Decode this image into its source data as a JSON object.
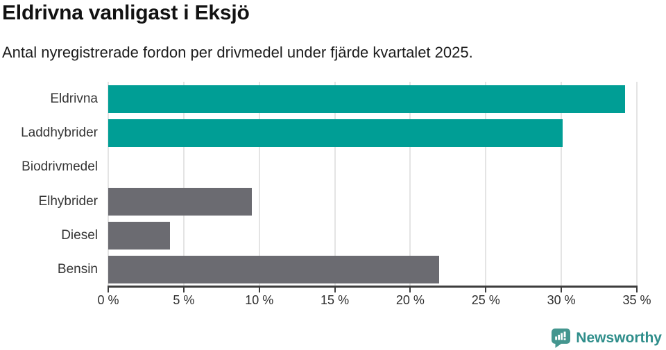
{
  "header": {
    "title": "Eldrivna vanligast i Eksjö",
    "subtitle": "Antal nyregistrerade fordon per drivmedel under fjärde kvartalet 2025."
  },
  "chart_data": {
    "type": "bar",
    "orientation": "horizontal",
    "title": "Eldrivna vanligast i Eksjö",
    "subtitle": "Antal nyregistrerade fordon per drivmedel under fjärde kvartalet 2025.",
    "categories": [
      "Eldrivna",
      "Laddhybrider",
      "Biodrivmedel",
      "Elhybrider",
      "Diesel",
      "Bensin"
    ],
    "values": [
      34.2,
      30.1,
      0,
      9.5,
      4.1,
      21.9
    ],
    "bar_colors": [
      "#009E95",
      "#009E95",
      "#6B6B71",
      "#6B6B71",
      "#6B6B71",
      "#6B6B71"
    ],
    "unit": "%",
    "xlim": [
      0,
      35
    ],
    "x_tick_values": [
      0,
      5,
      10,
      15,
      20,
      25,
      30,
      35
    ],
    "x_tick_labels": [
      "0 %",
      "5 %",
      "10 %",
      "15 %",
      "20 %",
      "25 %",
      "30 %",
      "35 %"
    ],
    "grid": true,
    "gridline_color": "#e4e4e4",
    "axis_color": "#3d3d3d",
    "highlight_color": "#009E95",
    "default_color": "#6B6B71",
    "legend": "none"
  },
  "footer": {
    "brand": "Newsworthy",
    "brand_color": "#2f8e8b",
    "logo_icon_color": "#44968f"
  }
}
